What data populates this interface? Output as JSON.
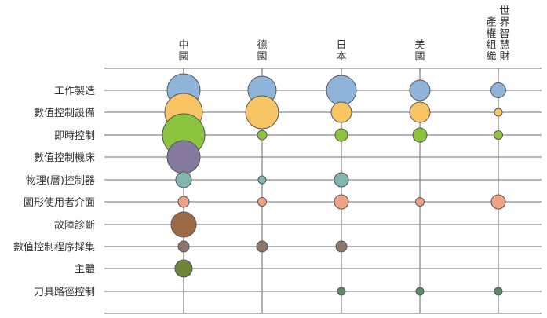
{
  "chart_data": {
    "type": "bubble",
    "title": "",
    "columns": [
      "中國",
      "德國",
      "日本",
      "美國",
      "世界智慧財產權組織"
    ],
    "column_label_lines": [
      [
        "中國"
      ],
      [
        "德國"
      ],
      [
        "日本"
      ],
      [
        "美國"
      ],
      [
        "產權組織",
        "世界智慧財"
      ]
    ],
    "rows": [
      "工作製造",
      "數值控制設備",
      "即時控制",
      "數值控制機床",
      "物理(層)控制器",
      "圖形使用者介面",
      "故障診斷",
      "數值控制程序採集",
      "主體",
      "刀具路徑控制"
    ],
    "row_colors": [
      "#8fb4da",
      "#f8c564",
      "#8cc43f",
      "#85799e",
      "#7fb7b0",
      "#f0a287",
      "#9c6b45",
      "#8b786a",
      "#6e8437",
      "#5a8a6c"
    ],
    "grid": true,
    "legend": "none",
    "size_unit": "relative bubble area",
    "values": [
      [
        441,
        324,
        361,
        169,
        90
      ],
      [
        576,
        441,
        169,
        169,
        25
      ],
      [
        729,
        36,
        64,
        81,
        30
      ],
      [
        441,
        null,
        null,
        null,
        null
      ],
      [
        100,
        25,
        81,
        null,
        null
      ],
      [
        49,
        30,
        81,
        30,
        81
      ],
      [
        256,
        null,
        null,
        null,
        null
      ],
      [
        49,
        49,
        49,
        null,
        null
      ],
      [
        121,
        null,
        null,
        null,
        null
      ],
      [
        null,
        null,
        25,
        25,
        25
      ]
    ]
  }
}
